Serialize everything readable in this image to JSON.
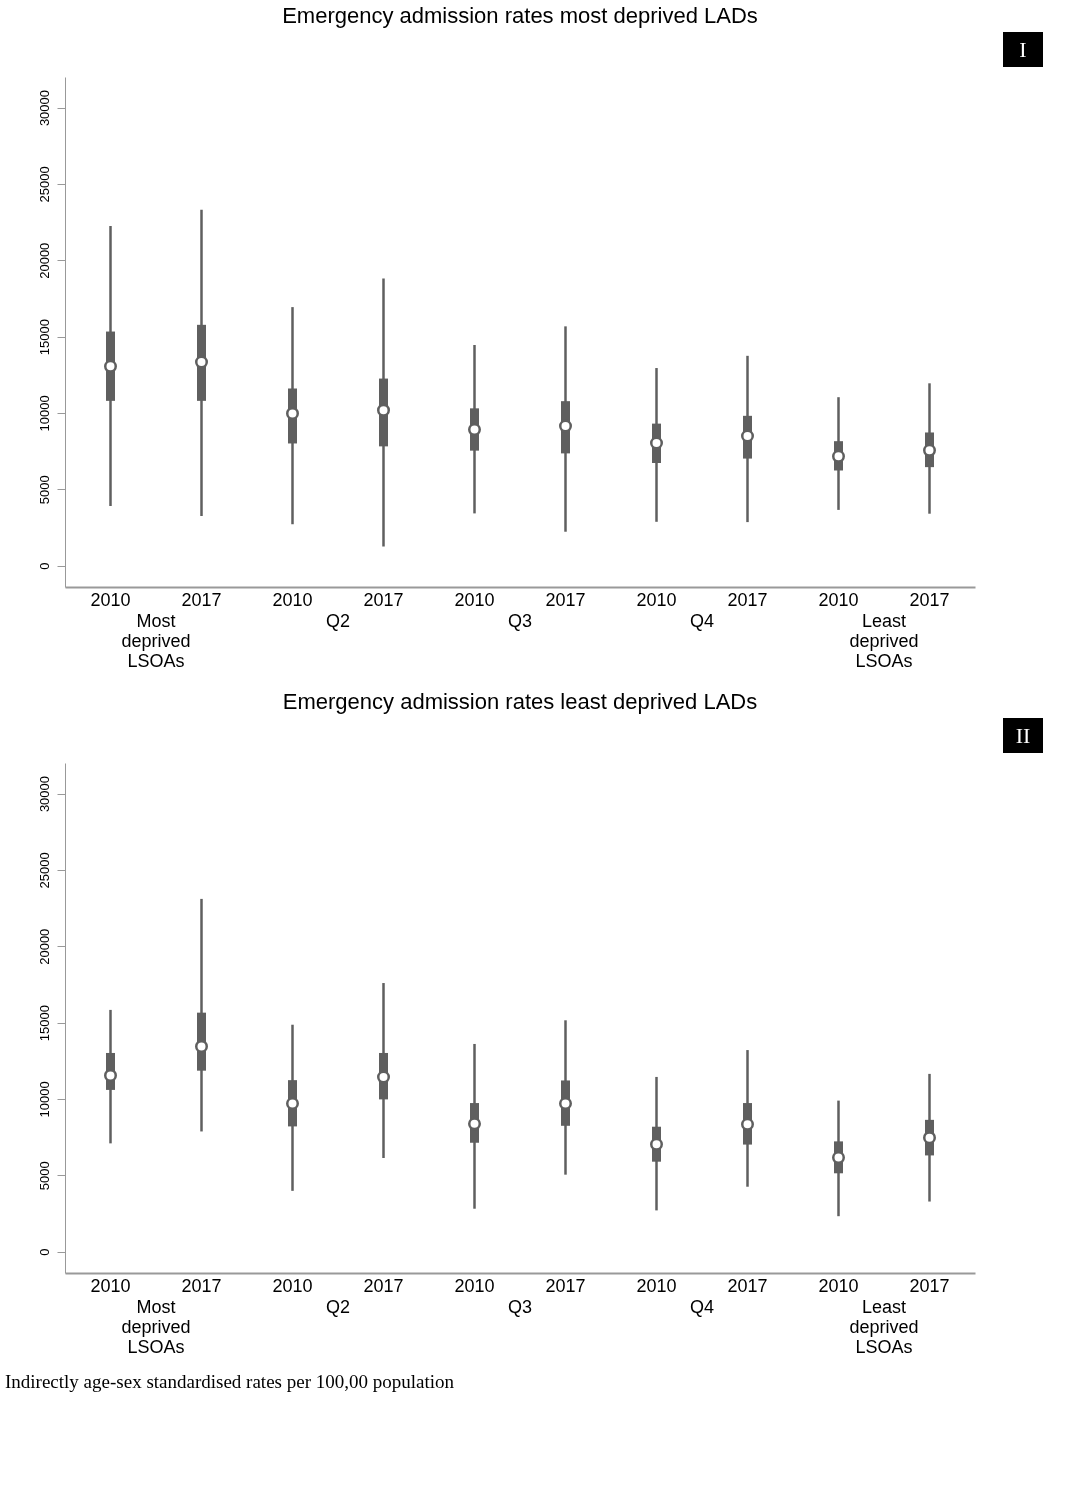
{
  "chart_data": [
    {
      "type": "box",
      "title": "Emergency admission rates most deprived LADs",
      "categories": [
        "2010",
        "2017",
        "2010",
        "2017",
        "2010",
        "2017",
        "2010",
        "2017",
        "2010",
        "2017"
      ],
      "ylim": [
        -1400,
        32000
      ],
      "yticks": [
        0,
        5000,
        10000,
        15000,
        20000,
        25000,
        30000
      ],
      "grid": false,
      "series": [
        {
          "color": "#5f5f5f",
          "boxes": [
            {
              "low": 3910,
              "q1": 10790,
              "median": 13050,
              "q3": 15330,
              "high": 22250
            },
            {
              "low": 3250,
              "q1": 10790,
              "median": 13330,
              "q3": 15770,
              "high": 23300
            },
            {
              "low": 2710,
              "q1": 8000,
              "median": 9970,
              "q3": 11600,
              "high": 16930
            },
            {
              "low": 1260,
              "q1": 7810,
              "median": 10180,
              "q3": 12250,
              "high": 18800
            },
            {
              "low": 3420,
              "q1": 7530,
              "median": 8910,
              "q3": 10300,
              "high": 14450
            },
            {
              "low": 2220,
              "q1": 7350,
              "median": 9140,
              "q3": 10770,
              "high": 15670
            },
            {
              "low": 2870,
              "q1": 6720,
              "median": 8030,
              "q3": 9300,
              "high": 12940
            },
            {
              "low": 2850,
              "q1": 7010,
              "median": 8490,
              "q3": 9810,
              "high": 13740
            },
            {
              "low": 3650,
              "q1": 6230,
              "median": 7160,
              "q3": 8150,
              "high": 11030
            },
            {
              "low": 3400,
              "q1": 6450,
              "median": 7550,
              "q3": 8720,
              "high": 11940
            }
          ]
        }
      ],
      "annotations": [
        "Most\ndeprived\nLSOAs",
        "Q2",
        "Q3",
        "Q4",
        "Least\ndeprived\nLSOAs",
        "I"
      ]
    },
    {
      "type": "box",
      "title": "Emergency admission rates least deprived LADs",
      "categories": [
        "2010",
        "2017",
        "2010",
        "2017",
        "2010",
        "2017",
        "2010",
        "2017",
        "2010",
        "2017"
      ],
      "ylim": [
        -1400,
        32000
      ],
      "yticks": [
        0,
        5000,
        10000,
        15000,
        20000,
        25000,
        30000
      ],
      "grid": false,
      "series": [
        {
          "color": "#5f5f5f",
          "boxes": [
            {
              "low": 7090,
              "q1": 10590,
              "median": 11540,
              "q3": 13010,
              "high": 15830
            },
            {
              "low": 7870,
              "q1": 11850,
              "median": 13440,
              "q3": 15650,
              "high": 23100
            },
            {
              "low": 3980,
              "q1": 8200,
              "median": 9700,
              "q3": 11230,
              "high": 14860
            },
            {
              "low": 6130,
              "q1": 9970,
              "median": 11430,
              "q3": 13010,
              "high": 17590
            },
            {
              "low": 2810,
              "q1": 7130,
              "median": 8370,
              "q3": 9730,
              "high": 13600
            },
            {
              "low": 5040,
              "q1": 8240,
              "median": 9700,
              "q3": 11210,
              "high": 15150
            },
            {
              "low": 2700,
              "q1": 5890,
              "median": 7030,
              "q3": 8180,
              "high": 11440
            },
            {
              "low": 4250,
              "q1": 7010,
              "median": 8340,
              "q3": 9730,
              "high": 13200
            },
            {
              "low": 2320,
              "q1": 5130,
              "median": 6160,
              "q3": 7220,
              "high": 9890
            },
            {
              "low": 3280,
              "q1": 6300,
              "median": 7460,
              "q3": 8630,
              "high": 11640
            }
          ]
        }
      ],
      "annotations": [
        "Most\ndeprived\nLSOAs",
        "Q2",
        "Q3",
        "Q4",
        "Least\ndeprived\nLSOAs",
        "II",
        "Indirectly age-sex standardised rates per 100,00 population"
      ]
    }
  ]
}
